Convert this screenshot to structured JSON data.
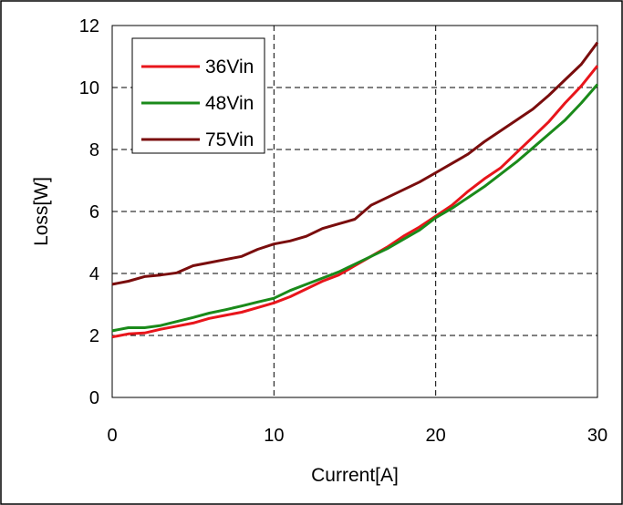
{
  "chart_data": {
    "type": "line",
    "title": "",
    "xlabel": "Current[A]",
    "ylabel": "Loss[W]",
    "xlim": [
      0,
      30
    ],
    "ylim": [
      0,
      12
    ],
    "xticks": [
      0,
      10,
      20,
      30
    ],
    "yticks": [
      0,
      2,
      4,
      6,
      8,
      10,
      12
    ],
    "grid": "dashed, major ticks",
    "legend_position": "top-left",
    "series": [
      {
        "name": "36Vin",
        "color": "#e8151b",
        "x": [
          0,
          1,
          2,
          3,
          4,
          5,
          6,
          7,
          8,
          9,
          10,
          11,
          12,
          13,
          14,
          15,
          16,
          17,
          18,
          19,
          20,
          21,
          22,
          23,
          24,
          25,
          26,
          27,
          28,
          29,
          30
        ],
        "y": [
          1.95,
          2.05,
          2.08,
          2.2,
          2.3,
          2.4,
          2.55,
          2.65,
          2.75,
          2.9,
          3.05,
          3.25,
          3.5,
          3.75,
          3.95,
          4.25,
          4.55,
          4.85,
          5.2,
          5.5,
          5.85,
          6.2,
          6.65,
          7.05,
          7.4,
          7.9,
          8.4,
          8.9,
          9.5,
          10.05,
          10.7
        ]
      },
      {
        "name": "48Vin",
        "color": "#1a8a1a",
        "x": [
          0,
          1,
          2,
          3,
          4,
          5,
          6,
          7,
          8,
          9,
          10,
          11,
          12,
          13,
          14,
          15,
          16,
          17,
          18,
          19,
          20,
          21,
          22,
          23,
          24,
          25,
          26,
          27,
          28,
          29,
          30
        ],
        "y": [
          2.15,
          2.25,
          2.25,
          2.32,
          2.45,
          2.58,
          2.72,
          2.83,
          2.95,
          3.08,
          3.2,
          3.45,
          3.65,
          3.85,
          4.05,
          4.3,
          4.55,
          4.8,
          5.1,
          5.4,
          5.8,
          6.1,
          6.45,
          6.8,
          7.2,
          7.6,
          8.05,
          8.5,
          8.95,
          9.5,
          10.1
        ]
      },
      {
        "name": "75Vin",
        "color": "#7a0d0d",
        "x": [
          0,
          1,
          2,
          3,
          4,
          5,
          6,
          7,
          8,
          9,
          10,
          11,
          12,
          13,
          14,
          15,
          16,
          17,
          18,
          19,
          20,
          21,
          22,
          23,
          24,
          25,
          26,
          27,
          28,
          29,
          30
        ],
        "y": [
          3.65,
          3.75,
          3.9,
          3.95,
          4.02,
          4.25,
          4.35,
          4.45,
          4.55,
          4.78,
          4.95,
          5.05,
          5.2,
          5.45,
          5.6,
          5.75,
          6.2,
          6.45,
          6.7,
          6.95,
          7.25,
          7.55,
          7.85,
          8.25,
          8.6,
          8.95,
          9.3,
          9.75,
          10.25,
          10.75,
          11.45
        ]
      }
    ]
  }
}
